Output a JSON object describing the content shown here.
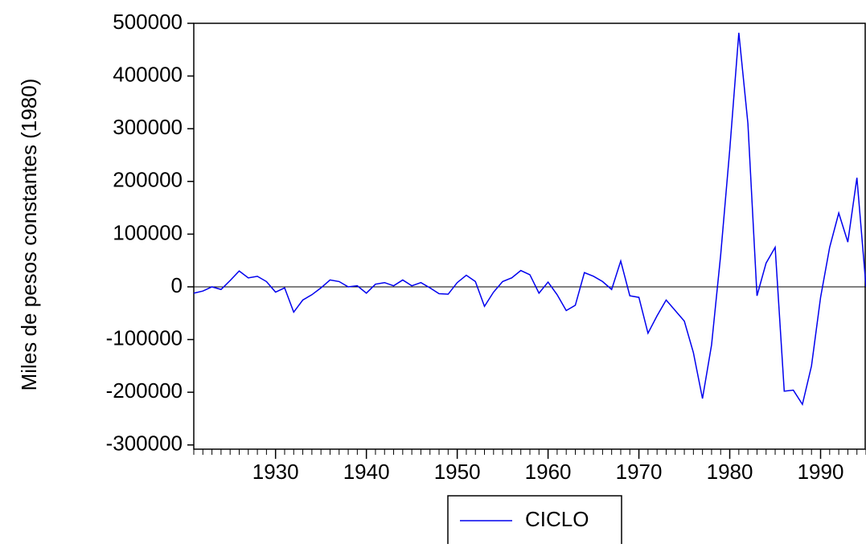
{
  "chart_data": {
    "type": "line",
    "ylabel": "Miles de pesos constantes (1980)",
    "x": [
      1921,
      1922,
      1923,
      1924,
      1925,
      1926,
      1927,
      1928,
      1929,
      1930,
      1931,
      1932,
      1933,
      1934,
      1935,
      1936,
      1937,
      1938,
      1939,
      1940,
      1941,
      1942,
      1943,
      1944,
      1945,
      1946,
      1947,
      1948,
      1949,
      1950,
      1951,
      1952,
      1953,
      1954,
      1955,
      1956,
      1957,
      1958,
      1959,
      1960,
      1961,
      1962,
      1963,
      1964,
      1965,
      1966,
      1967,
      1968,
      1969,
      1970,
      1971,
      1972,
      1973,
      1974,
      1975,
      1976,
      1977,
      1978,
      1979,
      1980,
      1981,
      1982,
      1983,
      1984,
      1985,
      1986,
      1987,
      1988,
      1989,
      1990,
      1991,
      1992,
      1993,
      1994,
      1995
    ],
    "series": [
      {
        "name": "CICLO",
        "color": "#0000ee",
        "values": [
          -12000,
          -8000,
          0,
          -5000,
          12000,
          30000,
          17000,
          20000,
          10000,
          -10000,
          -2000,
          -48000,
          -25000,
          -15000,
          -2000,
          13000,
          10000,
          0,
          2000,
          -12000,
          5000,
          8000,
          2000,
          13000,
          2000,
          8000,
          -2000,
          -13000,
          -14000,
          8000,
          22000,
          10000,
          -37000,
          -10000,
          10000,
          17000,
          31000,
          23000,
          -12000,
          9000,
          -15000,
          -45000,
          -35000,
          27000,
          20000,
          10000,
          -5000,
          49000,
          -17000,
          -20000,
          -88000,
          -55000,
          -25000,
          -45000,
          -65000,
          -125000,
          -212000,
          -110000,
          60000,
          260000,
          482000,
          310000,
          -17000,
          45000,
          75000,
          -198000,
          -196000,
          -223000,
          -150000,
          -20000,
          75000,
          140000,
          85000,
          207000,
          0
        ]
      }
    ],
    "xlim": [
      1921,
      1995
    ],
    "xticks": [
      1930,
      1940,
      1950,
      1960,
      1970,
      1980,
      1990
    ],
    "ylim": [
      -308000,
      500000
    ],
    "yticks": [
      -300000,
      -200000,
      -100000,
      0,
      100000,
      200000,
      300000,
      400000,
      500000
    ],
    "zero_line": true,
    "legend": "bottom"
  }
}
